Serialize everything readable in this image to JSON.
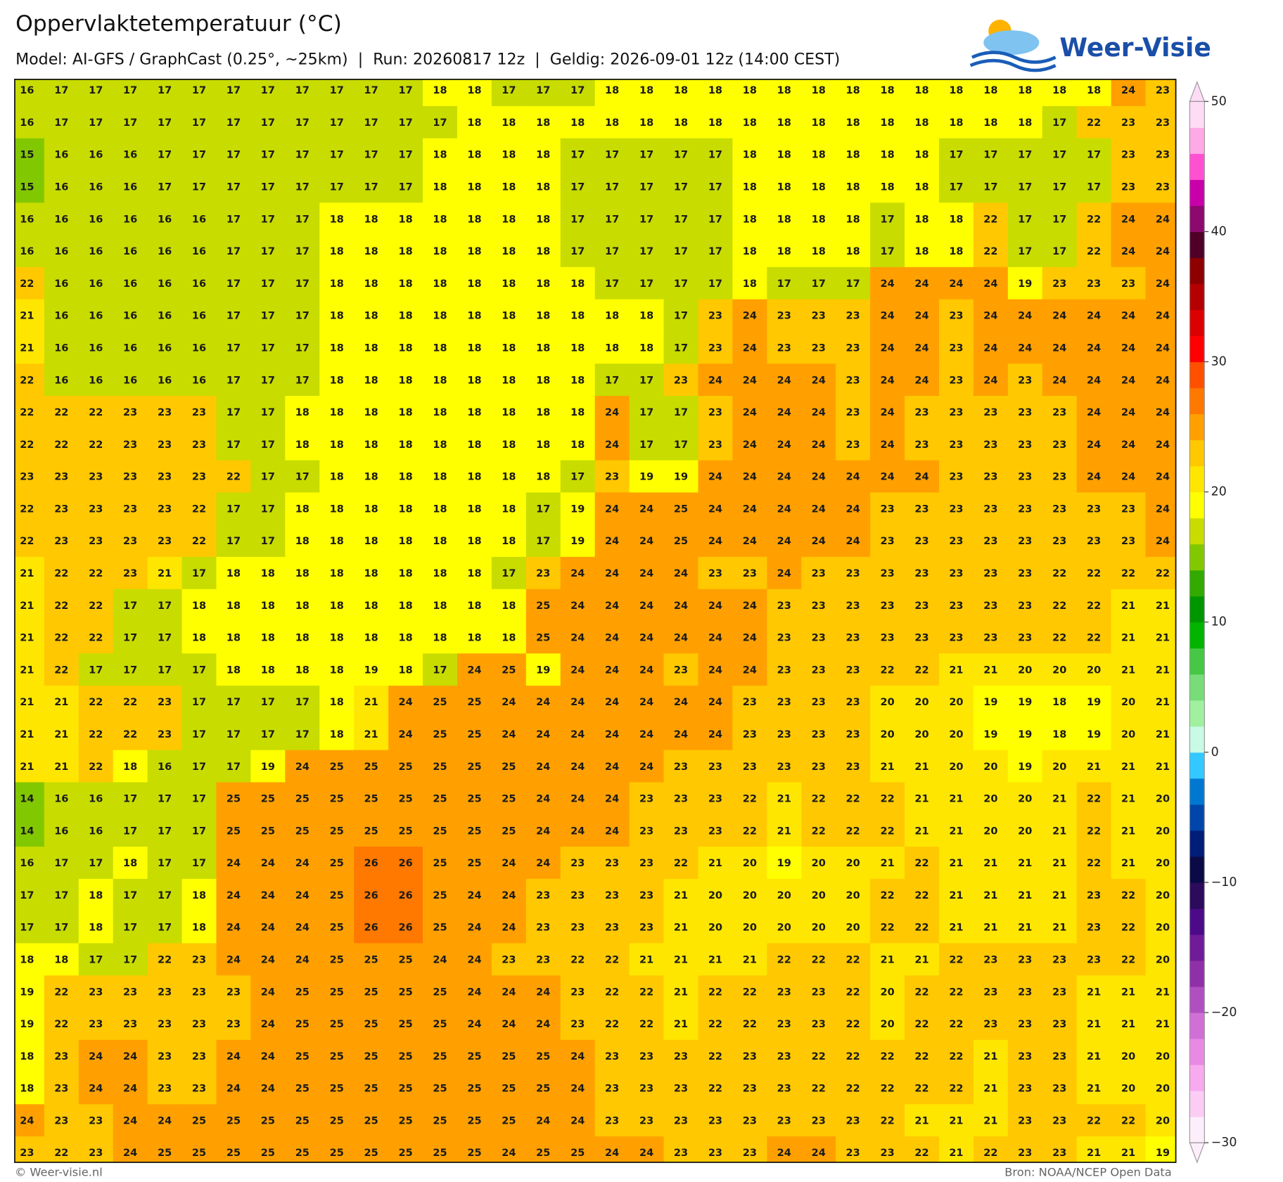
{
  "header": {
    "title": "Oppervlaktetemperatuur (°C)",
    "subtitle": "Model: AI-GFS / GraphCast (0.25°, ~25km)  |  Run: 20260817 12z  |  Geldig: 2026-09-01 12z (14:00 CEST)",
    "logo": "Weer-Visie"
  },
  "map": {
    "values": [
      [
        16,
        17,
        17,
        17,
        17,
        17,
        17,
        17,
        17,
        17,
        17,
        17,
        18,
        18,
        17,
        17,
        17,
        18,
        18,
        18,
        18,
        18,
        18,
        18,
        18,
        18,
        18,
        18,
        18,
        18,
        18,
        18,
        24,
        23
      ],
      [
        16,
        17,
        17,
        17,
        17,
        17,
        17,
        17,
        17,
        17,
        17,
        17,
        17,
        18,
        18,
        18,
        18,
        18,
        18,
        18,
        18,
        18,
        18,
        18,
        18,
        18,
        18,
        18,
        18,
        18,
        17,
        22,
        23,
        23
      ],
      [
        15,
        16,
        16,
        16,
        17,
        17,
        17,
        17,
        17,
        17,
        17,
        17,
        18,
        18,
        18,
        18,
        17,
        17,
        17,
        17,
        17,
        18,
        18,
        18,
        18,
        18,
        18,
        17,
        17,
        17,
        17,
        17,
        23,
        23
      ],
      [
        15,
        16,
        16,
        16,
        17,
        17,
        17,
        17,
        17,
        17,
        17,
        17,
        18,
        18,
        18,
        18,
        17,
        17,
        17,
        17,
        17,
        18,
        18,
        18,
        18,
        18,
        18,
        17,
        17,
        17,
        17,
        17,
        23,
        23
      ],
      [
        16,
        16,
        16,
        16,
        16,
        16,
        17,
        17,
        17,
        18,
        18,
        18,
        18,
        18,
        18,
        18,
        17,
        17,
        17,
        17,
        17,
        18,
        18,
        18,
        18,
        17,
        18,
        18,
        22,
        17,
        17,
        22,
        24,
        24
      ],
      [
        16,
        16,
        16,
        16,
        16,
        16,
        17,
        17,
        17,
        18,
        18,
        18,
        18,
        18,
        18,
        18,
        17,
        17,
        17,
        17,
        17,
        18,
        18,
        18,
        18,
        17,
        18,
        18,
        22,
        17,
        17,
        22,
        24,
        24
      ],
      [
        22,
        16,
        16,
        16,
        16,
        16,
        17,
        17,
        17,
        18,
        18,
        18,
        18,
        18,
        18,
        18,
        18,
        17,
        17,
        17,
        17,
        18,
        17,
        17,
        17,
        24,
        24,
        24,
        24,
        19,
        23,
        23,
        23,
        24
      ],
      [
        21,
        16,
        16,
        16,
        16,
        16,
        17,
        17,
        17,
        18,
        18,
        18,
        18,
        18,
        18,
        18,
        18,
        18,
        18,
        17,
        23,
        24,
        23,
        23,
        23,
        24,
        24,
        23,
        24,
        24,
        24,
        24,
        24,
        24
      ],
      [
        21,
        16,
        16,
        16,
        16,
        16,
        17,
        17,
        17,
        18,
        18,
        18,
        18,
        18,
        18,
        18,
        18,
        18,
        18,
        17,
        23,
        24,
        23,
        23,
        23,
        24,
        24,
        23,
        24,
        24,
        24,
        24,
        24,
        24
      ],
      [
        22,
        16,
        16,
        16,
        16,
        16,
        17,
        17,
        17,
        18,
        18,
        18,
        18,
        18,
        18,
        18,
        18,
        17,
        17,
        23,
        24,
        24,
        24,
        24,
        23,
        24,
        24,
        23,
        24,
        23,
        24,
        24,
        24,
        24
      ],
      [
        22,
        22,
        22,
        23,
        23,
        23,
        17,
        17,
        18,
        18,
        18,
        18,
        18,
        18,
        18,
        18,
        18,
        24,
        17,
        17,
        23,
        24,
        24,
        24,
        23,
        24,
        23,
        23,
        23,
        23,
        23,
        24,
        24,
        24
      ],
      [
        22,
        22,
        22,
        23,
        23,
        23,
        17,
        17,
        18,
        18,
        18,
        18,
        18,
        18,
        18,
        18,
        18,
        24,
        17,
        17,
        23,
        24,
        24,
        24,
        23,
        24,
        23,
        23,
        23,
        23,
        23,
        24,
        24,
        24
      ],
      [
        23,
        23,
        23,
        23,
        23,
        23,
        22,
        17,
        17,
        18,
        18,
        18,
        18,
        18,
        18,
        18,
        17,
        23,
        19,
        19,
        24,
        24,
        24,
        24,
        24,
        24,
        24,
        23,
        23,
        23,
        23,
        24,
        24,
        24
      ],
      [
        22,
        23,
        23,
        23,
        23,
        22,
        17,
        17,
        18,
        18,
        18,
        18,
        18,
        18,
        18,
        17,
        19,
        24,
        24,
        25,
        24,
        24,
        24,
        24,
        24,
        23,
        23,
        23,
        23,
        23,
        23,
        23,
        23,
        24
      ],
      [
        22,
        23,
        23,
        23,
        23,
        22,
        17,
        17,
        18,
        18,
        18,
        18,
        18,
        18,
        18,
        17,
        19,
        24,
        24,
        25,
        24,
        24,
        24,
        24,
        24,
        23,
        23,
        23,
        23,
        23,
        23,
        23,
        23,
        24
      ],
      [
        21,
        22,
        22,
        23,
        21,
        17,
        18,
        18,
        18,
        18,
        18,
        18,
        18,
        18,
        17,
        23,
        24,
        24,
        24,
        24,
        23,
        23,
        24,
        23,
        23,
        23,
        23,
        23,
        23,
        23,
        22,
        22,
        22,
        22
      ],
      [
        21,
        22,
        22,
        17,
        17,
        18,
        18,
        18,
        18,
        18,
        18,
        18,
        18,
        18,
        18,
        25,
        24,
        24,
        24,
        24,
        24,
        24,
        23,
        23,
        23,
        23,
        23,
        23,
        23,
        23,
        22,
        22,
        21,
        21
      ],
      [
        21,
        22,
        22,
        17,
        17,
        18,
        18,
        18,
        18,
        18,
        18,
        18,
        18,
        18,
        18,
        25,
        24,
        24,
        24,
        24,
        24,
        24,
        23,
        23,
        23,
        23,
        23,
        23,
        23,
        23,
        22,
        22,
        21,
        21
      ],
      [
        21,
        22,
        17,
        17,
        17,
        17,
        18,
        18,
        18,
        18,
        19,
        18,
        17,
        24,
        25,
        19,
        24,
        24,
        24,
        23,
        24,
        24,
        23,
        23,
        23,
        22,
        22,
        21,
        21,
        20,
        20,
        20,
        21,
        21
      ],
      [
        21,
        21,
        22,
        22,
        23,
        17,
        17,
        17,
        17,
        18,
        21,
        24,
        25,
        25,
        24,
        24,
        24,
        24,
        24,
        24,
        24,
        23,
        23,
        23,
        23,
        20,
        20,
        20,
        19,
        19,
        18,
        19,
        20,
        21
      ],
      [
        21,
        21,
        22,
        22,
        23,
        17,
        17,
        17,
        17,
        18,
        21,
        24,
        25,
        25,
        24,
        24,
        24,
        24,
        24,
        24,
        24,
        23,
        23,
        23,
        23,
        20,
        20,
        20,
        19,
        19,
        18,
        19,
        20,
        21
      ],
      [
        21,
        21,
        22,
        18,
        16,
        17,
        17,
        19,
        24,
        25,
        25,
        25,
        25,
        25,
        25,
        24,
        24,
        24,
        24,
        23,
        23,
        23,
        23,
        23,
        23,
        21,
        21,
        20,
        20,
        19,
        20,
        21,
        21,
        21
      ],
      [
        14,
        16,
        16,
        17,
        17,
        17,
        25,
        25,
        25,
        25,
        25,
        25,
        25,
        25,
        25,
        24,
        24,
        24,
        23,
        23,
        23,
        22,
        21,
        22,
        22,
        22,
        21,
        21,
        20,
        20,
        21,
        22,
        21,
        20
      ],
      [
        14,
        16,
        16,
        17,
        17,
        17,
        25,
        25,
        25,
        25,
        25,
        25,
        25,
        25,
        25,
        24,
        24,
        24,
        23,
        23,
        23,
        22,
        21,
        22,
        22,
        22,
        21,
        21,
        20,
        20,
        21,
        22,
        21,
        20
      ],
      [
        16,
        17,
        17,
        18,
        17,
        17,
        24,
        24,
        24,
        25,
        26,
        26,
        25,
        25,
        24,
        24,
        23,
        23,
        23,
        22,
        21,
        20,
        19,
        20,
        20,
        21,
        22,
        21,
        21,
        21,
        21,
        22,
        21,
        20
      ],
      [
        17,
        17,
        18,
        17,
        17,
        18,
        24,
        24,
        24,
        25,
        26,
        26,
        25,
        24,
        24,
        23,
        23,
        23,
        23,
        21,
        20,
        20,
        20,
        20,
        20,
        22,
        22,
        21,
        21,
        21,
        21,
        23,
        22,
        20
      ],
      [
        17,
        17,
        18,
        17,
        17,
        18,
        24,
        24,
        24,
        25,
        26,
        26,
        25,
        24,
        24,
        23,
        23,
        23,
        23,
        21,
        20,
        20,
        20,
        20,
        20,
        22,
        22,
        21,
        21,
        21,
        21,
        23,
        22,
        20
      ],
      [
        18,
        18,
        17,
        17,
        22,
        23,
        24,
        24,
        24,
        25,
        25,
        25,
        24,
        24,
        23,
        23,
        22,
        22,
        21,
        21,
        21,
        21,
        22,
        22,
        22,
        21,
        21,
        22,
        23,
        23,
        23,
        23,
        22,
        20
      ],
      [
        19,
        22,
        23,
        23,
        23,
        23,
        23,
        24,
        25,
        25,
        25,
        25,
        25,
        24,
        24,
        24,
        23,
        22,
        22,
        21,
        22,
        22,
        23,
        23,
        22,
        20,
        22,
        22,
        23,
        23,
        23,
        21,
        21,
        21
      ],
      [
        19,
        22,
        23,
        23,
        23,
        23,
        23,
        24,
        25,
        25,
        25,
        25,
        25,
        24,
        24,
        24,
        23,
        22,
        22,
        21,
        22,
        22,
        23,
        23,
        22,
        20,
        22,
        22,
        23,
        23,
        23,
        21,
        21,
        21
      ],
      [
        18,
        23,
        24,
        24,
        23,
        23,
        24,
        24,
        25,
        25,
        25,
        25,
        25,
        25,
        25,
        25,
        24,
        23,
        23,
        23,
        22,
        23,
        23,
        22,
        22,
        22,
        22,
        22,
        21,
        23,
        23,
        21,
        20,
        20
      ],
      [
        18,
        23,
        24,
        24,
        23,
        23,
        24,
        24,
        25,
        25,
        25,
        25,
        25,
        25,
        25,
        25,
        24,
        23,
        23,
        23,
        22,
        23,
        23,
        22,
        22,
        22,
        22,
        22,
        21,
        23,
        23,
        21,
        20,
        20
      ],
      [
        24,
        23,
        23,
        24,
        24,
        25,
        25,
        25,
        25,
        25,
        25,
        25,
        25,
        25,
        25,
        24,
        24,
        23,
        23,
        23,
        23,
        23,
        23,
        23,
        23,
        22,
        21,
        21,
        21,
        23,
        23,
        22,
        22,
        20
      ],
      [
        23,
        22,
        23,
        24,
        25,
        25,
        25,
        25,
        25,
        25,
        25,
        25,
        25,
        25,
        24,
        25,
        25,
        24,
        24,
        23,
        23,
        23,
        24,
        24,
        23,
        23,
        22,
        21,
        22,
        23,
        23,
        21,
        21,
        19
      ]
    ]
  },
  "colorbar": {
    "lim": [
      -30,
      50
    ],
    "ticks": [
      {
        "value": -30,
        "label": "−30"
      },
      {
        "value": -20,
        "label": "−20"
      },
      {
        "value": -10,
        "label": "−10"
      },
      0,
      10,
      20,
      30,
      40,
      50
    ],
    "colors": [
      "#fdeefb",
      "#fbcdf5",
      "#f8aaee",
      "#e88ae4",
      "#d070d6",
      "#b050c0",
      "#9030a8",
      "#701c98",
      "#4c0a88",
      "#2c0a5c",
      "#0a0a46",
      "#001e78",
      "#0046aa",
      "#0078d2",
      "#33c8ff",
      "#c8fae6",
      "#a0f0a0",
      "#78dc78",
      "#46c846",
      "#00b400",
      "#009600",
      "#32aa00",
      "#82c800",
      "#c8dc00",
      "#ffff00",
      "#ffe600",
      "#ffc800",
      "#ffa000",
      "#ff7800",
      "#ff5000",
      "#ff0000",
      "#dc0000",
      "#b40000",
      "#8c0000",
      "#500028",
      "#8c0a6e",
      "#c800aa",
      "#ff50d2",
      "#ffaae6",
      "#ffdcf5"
    ]
  },
  "footer": {
    "credit": "© Weer-visie.nl",
    "source": "Bron: NOAA/NCEP Open Data"
  }
}
